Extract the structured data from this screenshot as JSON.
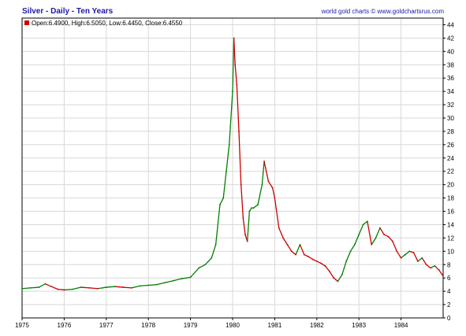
{
  "header": {
    "title": "Silver - Daily - Ten Years",
    "source": "world gold charts © www.goldchartsrus.com"
  },
  "legend": {
    "ohlc_text": "Open:6.4900, High:6.5050, Low:6.4450, Close:6.4550",
    "swatch_color": "#cc0000"
  },
  "chart_data": {
    "type": "line",
    "title": "Silver - Daily - Ten Years",
    "xlabel": "",
    "ylabel": "",
    "x_tick_labels": [
      "1975",
      "1976",
      "1977",
      "1978",
      "1979",
      "1980",
      "1981",
      "1982",
      "1983",
      "1984"
    ],
    "y_ticks": [
      0,
      2,
      4,
      6,
      8,
      10,
      12,
      14,
      16,
      18,
      20,
      22,
      24,
      26,
      28,
      30,
      32,
      34,
      36,
      38,
      40,
      42,
      44
    ],
    "xlim": [
      1975.0,
      1985.0
    ],
    "ylim": [
      0,
      45
    ],
    "grid": true,
    "y_axis_side": "right",
    "legend_position": "top-left",
    "colors": {
      "up": "#008000",
      "down": "#cc0000",
      "grid": "#d8d8d8"
    },
    "series": [
      {
        "name": "",
        "x": [
          1975.0,
          1975.2,
          1975.4,
          1975.55,
          1975.7,
          1975.85,
          1976.0,
          1976.2,
          1976.4,
          1976.6,
          1976.8,
          1977.0,
          1977.2,
          1977.4,
          1977.6,
          1977.8,
          1978.0,
          1978.2,
          1978.4,
          1978.6,
          1978.8,
          1979.0,
          1979.2,
          1979.35,
          1979.5,
          1979.6,
          1979.7,
          1979.78,
          1979.85,
          1979.92,
          1980.0,
          1980.03,
          1980.06,
          1980.1,
          1980.15,
          1980.2,
          1980.25,
          1980.3,
          1980.35,
          1980.4,
          1980.45,
          1980.5,
          1980.6,
          1980.7,
          1980.75,
          1980.85,
          1980.95,
          1981.0,
          1981.1,
          1981.2,
          1981.3,
          1981.4,
          1981.5,
          1981.6,
          1981.7,
          1981.8,
          1981.9,
          1982.0,
          1982.1,
          1982.2,
          1982.3,
          1982.4,
          1982.5,
          1982.6,
          1982.7,
          1982.8,
          1982.9,
          1983.0,
          1983.1,
          1983.2,
          1983.3,
          1983.4,
          1983.5,
          1983.6,
          1983.7,
          1983.8,
          1983.9,
          1984.0,
          1984.1,
          1984.2,
          1984.3,
          1984.4,
          1984.5,
          1984.6,
          1984.7,
          1984.8,
          1984.9,
          1984.98
        ],
        "values": [
          4.4,
          4.5,
          4.6,
          5.1,
          4.7,
          4.3,
          4.2,
          4.3,
          4.6,
          4.5,
          4.4,
          4.6,
          4.7,
          4.6,
          4.5,
          4.8,
          4.9,
          5.0,
          5.3,
          5.6,
          5.9,
          6.1,
          7.5,
          8.0,
          9.0,
          11.0,
          17.0,
          18.0,
          22.0,
          26.0,
          34.0,
          42.0,
          38.0,
          35.0,
          28.0,
          20.0,
          15.0,
          12.5,
          11.5,
          16.0,
          16.5,
          16.5,
          17.0,
          20.0,
          23.5,
          20.5,
          19.5,
          18.0,
          13.5,
          12.0,
          11.0,
          10.0,
          9.5,
          11.0,
          9.5,
          9.2,
          8.8,
          8.5,
          8.2,
          7.8,
          7.0,
          6.0,
          5.5,
          6.5,
          8.5,
          10.0,
          11.0,
          12.5,
          14.0,
          14.5,
          11.0,
          12.0,
          13.5,
          12.5,
          12.2,
          11.5,
          10.0,
          9.0,
          9.5,
          10.0,
          9.8,
          8.5,
          9.0,
          8.0,
          7.5,
          7.8,
          7.2,
          6.45
        ]
      }
    ]
  }
}
